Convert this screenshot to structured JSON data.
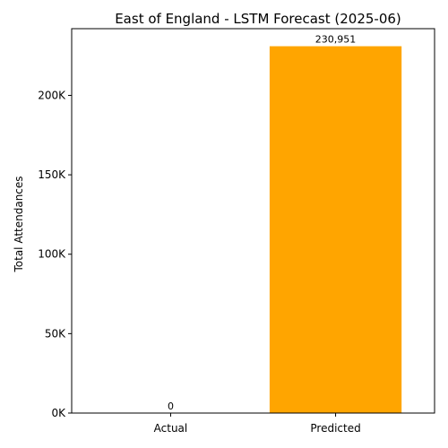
{
  "chart_data": {
    "type": "bar",
    "title": "East of England - LSTM Forecast (2025-06)",
    "xlabel": "",
    "ylabel": "Total Attendances",
    "categories": [
      "Actual",
      "Predicted"
    ],
    "values": [
      0,
      230951
    ],
    "value_labels": [
      "0",
      "230,951"
    ],
    "bar_colors": [
      "#1f77b4",
      "#ffa500"
    ],
    "ylim": [
      0,
      242000
    ],
    "yticks": [
      0,
      50000,
      100000,
      150000,
      200000
    ],
    "ytick_labels": [
      "0K",
      "50K",
      "100K",
      "150K",
      "200K"
    ],
    "grid": false,
    "legend": "none"
  }
}
